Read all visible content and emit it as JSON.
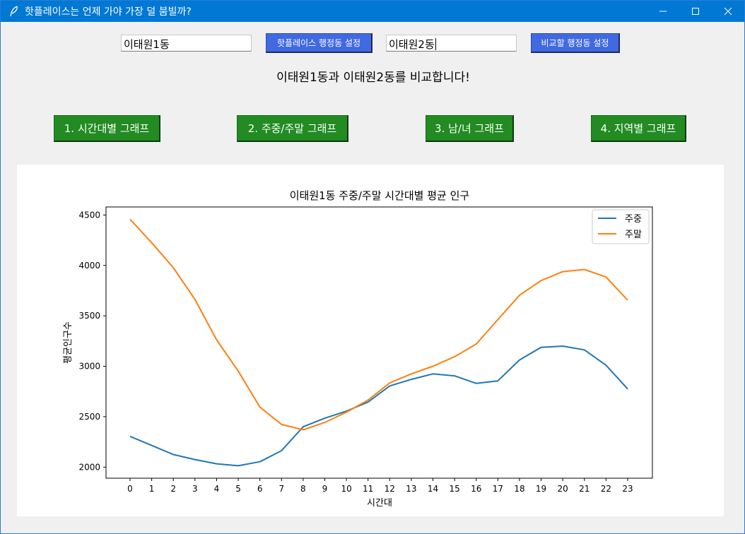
{
  "window": {
    "title": "핫플레이스는 언제 가야 가장 덜 붐빌까?",
    "icons": [
      "feather-icon",
      "minimize-icon",
      "maximize-icon",
      "close-icon"
    ]
  },
  "controls": {
    "hotplace_input": "이태원1동",
    "hotplace_button": "핫플레이스 행정동 설정",
    "compare_input": "이태원2동",
    "compare_button": "비교할 행정동 설정",
    "status_message": "이태원1동과 이태원2동를 비교합니다!"
  },
  "graph_buttons": [
    {
      "label": "1. 시간대별 그래프"
    },
    {
      "label": "2. 주중/주말 그래프"
    },
    {
      "label": "3. 남/녀 그래프"
    },
    {
      "label": "4. 지역별 그래프"
    }
  ],
  "colors": {
    "weekday": "#1f77b4",
    "weekend": "#ff7f0e",
    "accent_blue": "#4169e1",
    "accent_green": "#228b22"
  },
  "chart_data": {
    "type": "line",
    "title": "이태원1동 주중/주말 시간대별 평균 인구",
    "xlabel": "시간대",
    "ylabel": "평균인구수",
    "categories": [
      "0",
      "1",
      "2",
      "3",
      "4",
      "5",
      "6",
      "7",
      "8",
      "9",
      "10",
      "11",
      "12",
      "13",
      "14",
      "15",
      "16",
      "17",
      "18",
      "19",
      "20",
      "21",
      "22",
      "23"
    ],
    "ylim": [
      1890,
      4580
    ],
    "yticks": [
      "2000",
      "2500",
      "3000",
      "3500",
      "4000",
      "4500"
    ],
    "legend_position": "top-right",
    "series": [
      {
        "name": "주중",
        "color": "#1f77b4",
        "values": [
          2305,
          2215,
          2125,
          2075,
          2033,
          2013,
          2053,
          2163,
          2400,
          2485,
          2555,
          2645,
          2805,
          2870,
          2925,
          2905,
          2830,
          2855,
          3063,
          3188,
          3200,
          3163,
          3010,
          2775
        ]
      },
      {
        "name": "주말",
        "color": "#ff7f0e",
        "values": [
          4458,
          4225,
          3978,
          3663,
          3263,
          2953,
          2595,
          2423,
          2370,
          2443,
          2545,
          2665,
          2835,
          2925,
          3000,
          3095,
          3220,
          3463,
          3705,
          3850,
          3938,
          3960,
          3885,
          3655
        ]
      }
    ]
  }
}
